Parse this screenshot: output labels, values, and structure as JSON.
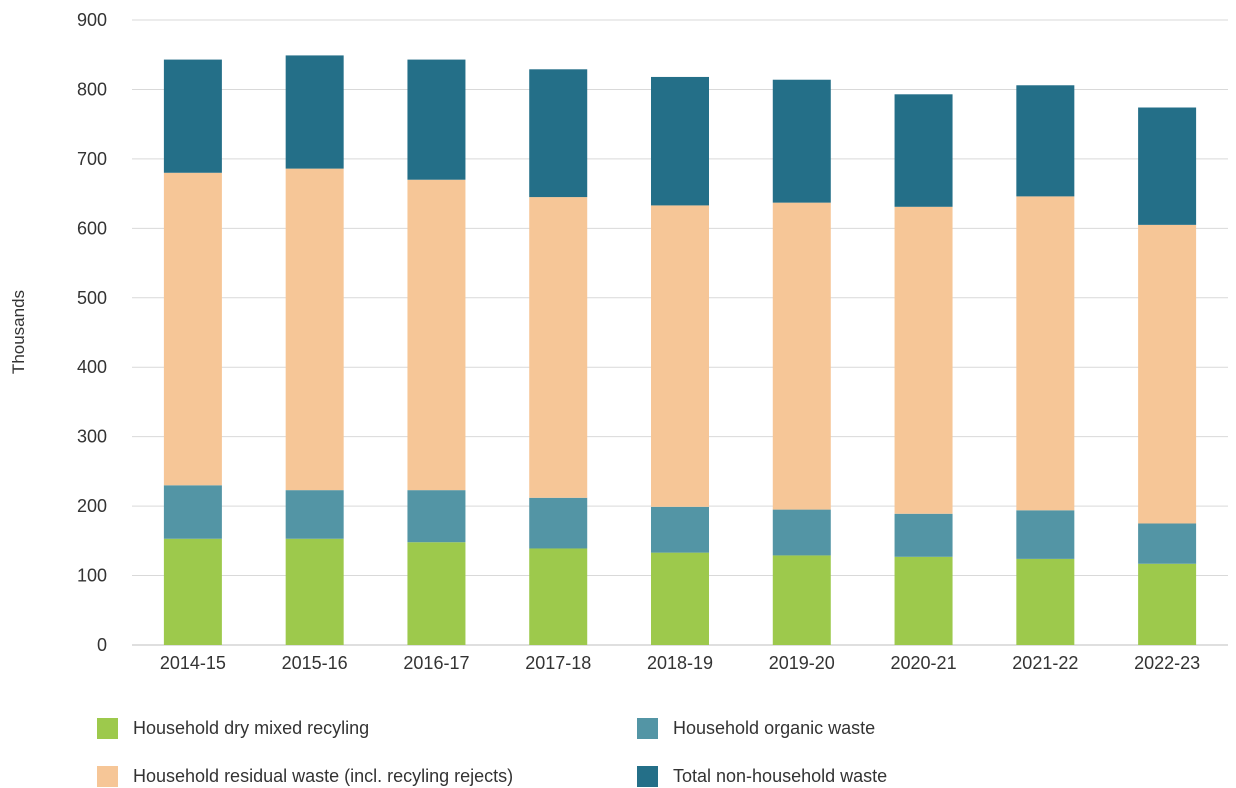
{
  "chart_data": {
    "type": "bar",
    "stacked": true,
    "ylabel": "Thousands",
    "ylim": [
      0,
      900
    ],
    "yticks": [
      0,
      100,
      200,
      300,
      400,
      500,
      600,
      700,
      800,
      900
    ],
    "grid": true,
    "legend_position": "bottom",
    "categories": [
      "2014-15",
      "2015-16",
      "2016-17",
      "2017-18",
      "2018-19",
      "2019-20",
      "2020-21",
      "2021-22",
      "2022-23"
    ],
    "series": [
      {
        "name": "Household dry mixed recyling",
        "color": "#9dc94c",
        "values": [
          153,
          153,
          148,
          139,
          133,
          129,
          127,
          124,
          117
        ]
      },
      {
        "name": "Household organic waste",
        "color": "#5395a5",
        "values": [
          77,
          70,
          75,
          73,
          66,
          66,
          62,
          70,
          58
        ]
      },
      {
        "name": "Household residual waste (incl. recyling rejects)",
        "color": "#f6c697",
        "values": [
          450,
          463,
          447,
          433,
          434,
          442,
          442,
          452,
          430
        ]
      },
      {
        "name": "Total non-household waste",
        "color": "#246f88",
        "values": [
          163,
          163,
          173,
          184,
          185,
          177,
          162,
          160,
          169
        ]
      }
    ]
  },
  "legend": {
    "items": [
      {
        "label": "Household dry mixed recyling",
        "color": "#9dc94c"
      },
      {
        "label": "Household organic waste",
        "color": "#5395a5"
      },
      {
        "label": "Household residual waste (incl. recyling rejects)",
        "color": "#f6c697"
      },
      {
        "label": "Total non-household waste",
        "color": "#246f88"
      }
    ]
  }
}
